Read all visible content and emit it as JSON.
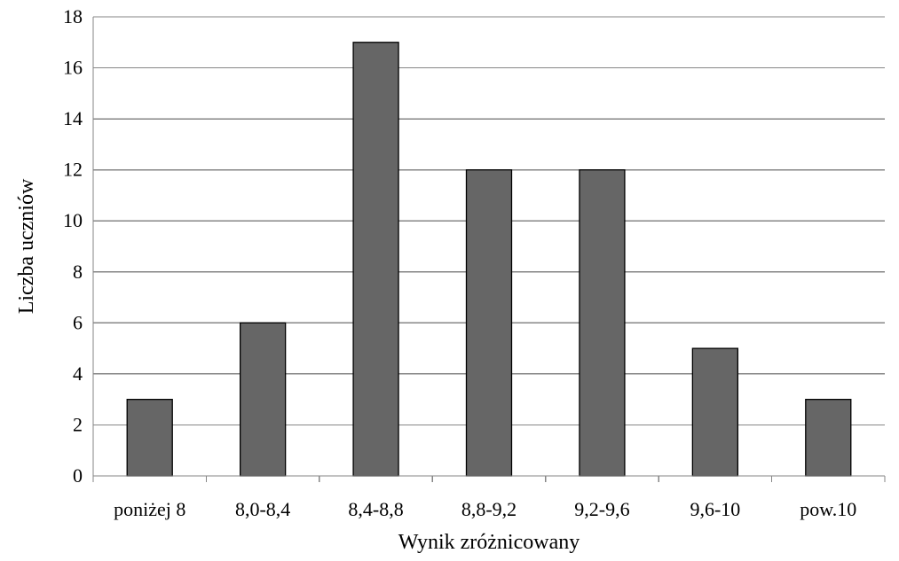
{
  "chart_data": {
    "type": "bar",
    "title": "",
    "xlabel": "Wynik zróżnicowany",
    "ylabel": "Liczba uczniów",
    "categories": [
      "poniżej 8",
      "8,0-8,4",
      "8,4-8,8",
      "8,8-9,2",
      "9,2-9,6",
      "9,6-10",
      "pow.10"
    ],
    "values": [
      3,
      6,
      17,
      12,
      12,
      5,
      3
    ],
    "ylim": [
      0,
      18
    ],
    "yticks": [
      0,
      2,
      4,
      6,
      8,
      10,
      12,
      14,
      16,
      18
    ],
    "grid": true,
    "legend": "none",
    "bar_color": "#666666"
  }
}
